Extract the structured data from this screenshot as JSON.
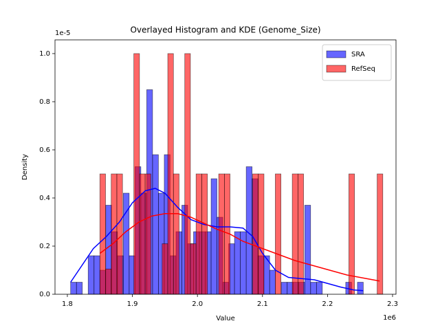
{
  "chart_data": {
    "type": "histogram",
    "title": "Overlayed Histogram and KDE (Genome_Size)",
    "x_label": "Value",
    "y_label": "Density",
    "x_offset_label": "1e6",
    "y_offset_label": "1e-5",
    "xlim": [
      1.781,
      2.3053
    ],
    "ylim": [
      0,
      1.057
    ],
    "xticks": [
      1.8,
      1.9,
      {
        "value": 2.0,
        "label": "2.0"
      },
      2.1,
      2.2,
      2.3
    ],
    "yticks": [
      {
        "value": 0,
        "label": "0.0"
      },
      0.2,
      0.4,
      0.6,
      0.8,
      {
        "value": 1,
        "label": "1.0"
      }
    ],
    "legend": "upper right",
    "series": [
      {
        "name": "SRA",
        "color": "#0000ff",
        "bins": [
          1.805,
          1.814,
          1.823,
          1.832,
          1.841,
          1.85,
          1.859,
          1.868,
          1.877,
          1.886,
          1.895,
          1.904,
          1.913,
          1.922,
          1.931,
          1.94,
          1.949,
          1.958,
          1.967,
          1.976,
          1.985,
          1.994,
          2.003,
          2.012,
          2.021,
          2.03,
          2.039,
          2.048,
          2.057,
          2.066,
          2.075,
          2.084,
          2.093,
          2.102,
          2.111,
          2.12,
          2.129,
          2.138,
          2.147,
          2.156,
          2.165,
          2.174,
          2.183,
          2.192,
          2.201,
          2.21,
          2.219,
          2.228,
          2.237,
          2.246,
          2.255
        ],
        "values": [
          0.05,
          0.05,
          0,
          0.16,
          0.16,
          0.1,
          0.37,
          0.26,
          0.16,
          0.42,
          0.16,
          0.53,
          0.42,
          0.85,
          0.58,
          0.42,
          0.58,
          0.16,
          0.26,
          0.37,
          0.21,
          0.26,
          0.26,
          0.26,
          0.48,
          0.32,
          0.05,
          0.21,
          0.26,
          0.26,
          0.53,
          0.48,
          0.16,
          0.16,
          0.1,
          0,
          0.05,
          0.05,
          0.05,
          0.05,
          0.37,
          0.05,
          0.05,
          0,
          0,
          0,
          0,
          0.05,
          0,
          0.05
        ],
        "kde": {
          "x": [
            1.805,
            1.82,
            1.84,
            1.86,
            1.88,
            1.9,
            1.92,
            1.935,
            1.95,
            1.97,
            1.99,
            2.01,
            2.03,
            2.05,
            2.07,
            2.085,
            2.1,
            2.12,
            2.14,
            2.16,
            2.18,
            2.2,
            2.22,
            2.24,
            2.255
          ],
          "values": [
            0.05,
            0.11,
            0.19,
            0.24,
            0.3,
            0.38,
            0.43,
            0.44,
            0.42,
            0.36,
            0.31,
            0.29,
            0.28,
            0.28,
            0.275,
            0.24,
            0.17,
            0.1,
            0.07,
            0.065,
            0.06,
            0.045,
            0.03,
            0.018,
            0.015
          ]
        }
      },
      {
        "name": "RefSeq",
        "color": "#ff0000",
        "bins": [
          1.85,
          1.8587,
          1.8674,
          1.8761,
          1.8848,
          1.8935,
          1.9022,
          1.9109,
          1.9196,
          1.9283,
          1.937,
          1.9457,
          1.9544,
          1.9631,
          1.9718,
          1.9805,
          1.9892,
          1.9979,
          2.0066,
          2.0153,
          2.024,
          2.0327,
          2.0414,
          2.0501,
          2.0588,
          2.0675,
          2.0762,
          2.0849,
          2.0936,
          2.1023,
          2.111,
          2.1197,
          2.1284,
          2.1371,
          2.1458,
          2.1545,
          2.1632,
          2.1719,
          2.1806,
          2.1893,
          2.198,
          2.2067,
          2.2154,
          2.2241,
          2.2328,
          2.2415,
          2.2502,
          2.2589,
          2.2676,
          2.2763,
          2.285
        ],
        "values": [
          0.5,
          0.105,
          0.5,
          0.5,
          0,
          0,
          1,
          0.5,
          0.5,
          0,
          0,
          0.21,
          1,
          0.5,
          0,
          1,
          0.21,
          0.5,
          0.5,
          0,
          0,
          0.5,
          0.5,
          0,
          0,
          0,
          0,
          0.5,
          0.5,
          0,
          0,
          0.5,
          0,
          0,
          0.5,
          0.5,
          0,
          0,
          0,
          0,
          0,
          0,
          0,
          0,
          0.5,
          0,
          0,
          0,
          0,
          0.5
        ],
        "kde": {
          "x": [
            1.85,
            1.87,
            1.89,
            1.91,
            1.93,
            1.95,
            1.97,
            1.99,
            2.01,
            2.03,
            2.05,
            2.07,
            2.09,
            2.11,
            2.13,
            2.15,
            2.17,
            2.19,
            2.21,
            2.23,
            2.25,
            2.27,
            2.28
          ],
          "values": [
            0.17,
            0.21,
            0.26,
            0.3,
            0.325,
            0.335,
            0.335,
            0.32,
            0.295,
            0.27,
            0.25,
            0.22,
            0.2,
            0.18,
            0.16,
            0.14,
            0.125,
            0.11,
            0.095,
            0.08,
            0.07,
            0.06,
            0.055
          ]
        }
      }
    ]
  }
}
